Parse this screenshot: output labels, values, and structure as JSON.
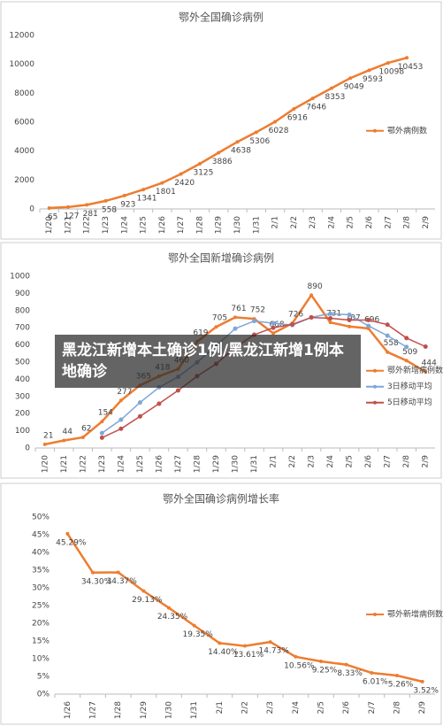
{
  "chart_data": [
    {
      "type": "line",
      "title": "鄂外全国确诊病例",
      "categories": [
        "1/20",
        "1/21",
        "1/22",
        "1/23",
        "1/24",
        "1/25",
        "1/26",
        "1/27",
        "1/28",
        "1/29",
        "1/30",
        "1/31",
        "2/1",
        "2/2",
        "2/3",
        "2/4",
        "2/5",
        "2/6",
        "2/7",
        "2/8",
        "2/9"
      ],
      "series": [
        {
          "name": "鄂外病例数",
          "color": "#ed7d31",
          "values": [
            65,
            127,
            281,
            558,
            923,
            1341,
            1801,
            2420,
            3125,
            3886,
            4638,
            5306,
            6028,
            6916,
            7646,
            8353,
            9049,
            9593,
            10098,
            10453,
            null
          ]
        }
      ],
      "ylim": [
        0,
        12000
      ],
      "yticks": [
        0,
        2000,
        4000,
        6000,
        8000,
        10000,
        12000
      ],
      "grid": false,
      "legend": "right"
    },
    {
      "type": "line",
      "title": "鄂外全国新增确诊病例",
      "categories": [
        "1/20",
        "1/21",
        "1/22",
        "1/23",
        "1/24",
        "1/25",
        "1/26",
        "1/27",
        "1/28",
        "1/29",
        "1/30",
        "1/31",
        "2/1",
        "2/2",
        "2/3",
        "2/4",
        "2/5",
        "2/6",
        "2/7",
        "2/8",
        "2/9"
      ],
      "series": [
        {
          "name": "鄂外新增病例数",
          "color": "#ed7d31",
          "values": [
            21,
            44,
            62,
            154,
            277,
            365,
            418,
            460,
            619,
            705,
            761,
            752,
            668,
            726,
            890,
            731,
            707,
            696,
            558,
            509,
            444
          ]
        },
        {
          "name": "3日移动平均",
          "color": "#7ea6d8",
          "values": [
            null,
            null,
            null,
            87,
            165,
            265,
            353,
            414,
            499,
            595,
            695,
            739,
            727,
            715,
            761,
            782,
            776,
            711,
            654,
            588,
            null
          ]
        },
        {
          "name": "5日移动平均",
          "color": "#c0504d",
          "values": [
            null,
            null,
            null,
            60,
            112,
            184,
            258,
            335,
            418,
            490,
            585,
            660,
            700,
            720,
            760,
            755,
            745,
            745,
            718,
            640,
            590
          ]
        }
      ],
      "ylim": [
        0,
        1000
      ],
      "yticks": [
        0,
        100,
        200,
        300,
        400,
        500,
        600,
        700,
        800,
        900,
        1000
      ],
      "grid": false,
      "legend": "right"
    },
    {
      "type": "line",
      "title": "鄂外全国确诊病例增长率",
      "categories": [
        "1/26",
        "1/27",
        "1/28",
        "1/29",
        "1/30",
        "1/31",
        "2/1",
        "2/2",
        "2/3",
        "2/4",
        "2/5",
        "2/6",
        "2/7",
        "2/8",
        "2/9"
      ],
      "series": [
        {
          "name": "鄂外新增病例数",
          "color": "#ed7d31",
          "values": [
            45.29,
            34.3,
            34.37,
            29.13,
            24.35,
            19.35,
            14.4,
            13.61,
            14.73,
            10.56,
            9.25,
            8.33,
            6.01,
            5.26,
            3.52
          ],
          "value_labels": [
            "45.29%",
            "34.30%",
            "34.37%",
            "29.13%",
            "24.35%",
            "19.35%",
            "14.40%",
            "13.61%",
            "14.73%",
            "10.56%",
            "9.25%",
            "8.33%",
            "6.01%",
            "5.26%",
            "3.52%"
          ]
        }
      ],
      "ylim": [
        0,
        50
      ],
      "yticks": [
        {
          "value": 0,
          "label": "0%"
        },
        {
          "value": 5,
          "label": "5%"
        },
        {
          "value": 10,
          "label": "10%"
        },
        {
          "value": 15,
          "label": "15%"
        },
        {
          "value": 20,
          "label": "20%"
        },
        {
          "value": 25,
          "label": "25%"
        },
        {
          "value": 30,
          "label": "30%"
        },
        {
          "value": 35,
          "label": "35%"
        },
        {
          "value": 40,
          "label": "40%"
        },
        {
          "value": 45,
          "label": "45%"
        },
        {
          "value": 50,
          "label": "50%"
        }
      ],
      "grid": false,
      "legend": "right"
    }
  ],
  "overlay": {
    "text": "黑龙江新增本土确诊1例/黑龙江新增1例本地确诊"
  }
}
